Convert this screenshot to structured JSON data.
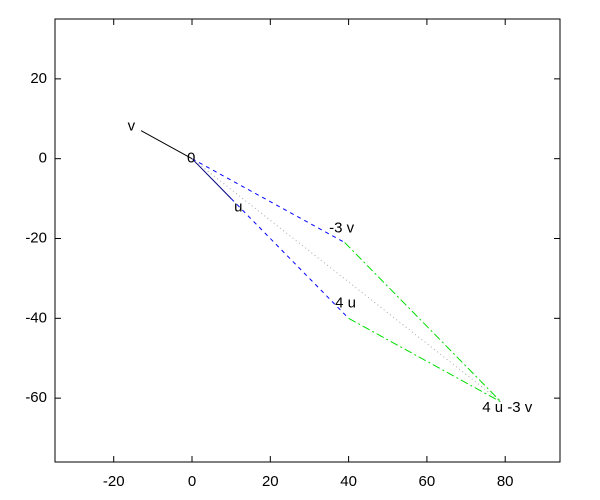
{
  "chart_data": {
    "type": "vector",
    "xlim": [
      -35,
      94
    ],
    "ylim": [
      -76,
      35
    ],
    "xticks": [
      -20,
      0,
      20,
      40,
      60,
      80
    ],
    "yticks": [
      20,
      0,
      -20,
      -40,
      -60
    ],
    "points": [
      {
        "label": "v",
        "x": -13,
        "y": 7
      },
      {
        "label": "0",
        "x": 0,
        "y": 0
      },
      {
        "label": "u",
        "x": 10,
        "y": -10
      },
      {
        "label": "-3 v",
        "x": 39,
        "y": -21
      },
      {
        "label": "4 u",
        "x": 40,
        "y": -40
      },
      {
        "label": "4 u -3 v",
        "x": 79,
        "y": -61
      }
    ],
    "segments": [
      {
        "from": 1,
        "to": 0,
        "color": "#000000",
        "dash": "solid"
      },
      {
        "from": 1,
        "to": 2,
        "color": "#000080",
        "dash": "solid"
      },
      {
        "from": 1,
        "to": 3,
        "color": "#0000ff",
        "dash": "dashed"
      },
      {
        "from": 2,
        "to": 4,
        "color": "#0000ff",
        "dash": "dashed"
      },
      {
        "from": 3,
        "to": 5,
        "color": "#00dd00",
        "dash": "dashdot"
      },
      {
        "from": 4,
        "to": 5,
        "color": "#00dd00",
        "dash": "dashdot"
      },
      {
        "from": 1,
        "to": 5,
        "color": "#aaaaaa",
        "dash": "dotted"
      }
    ]
  }
}
